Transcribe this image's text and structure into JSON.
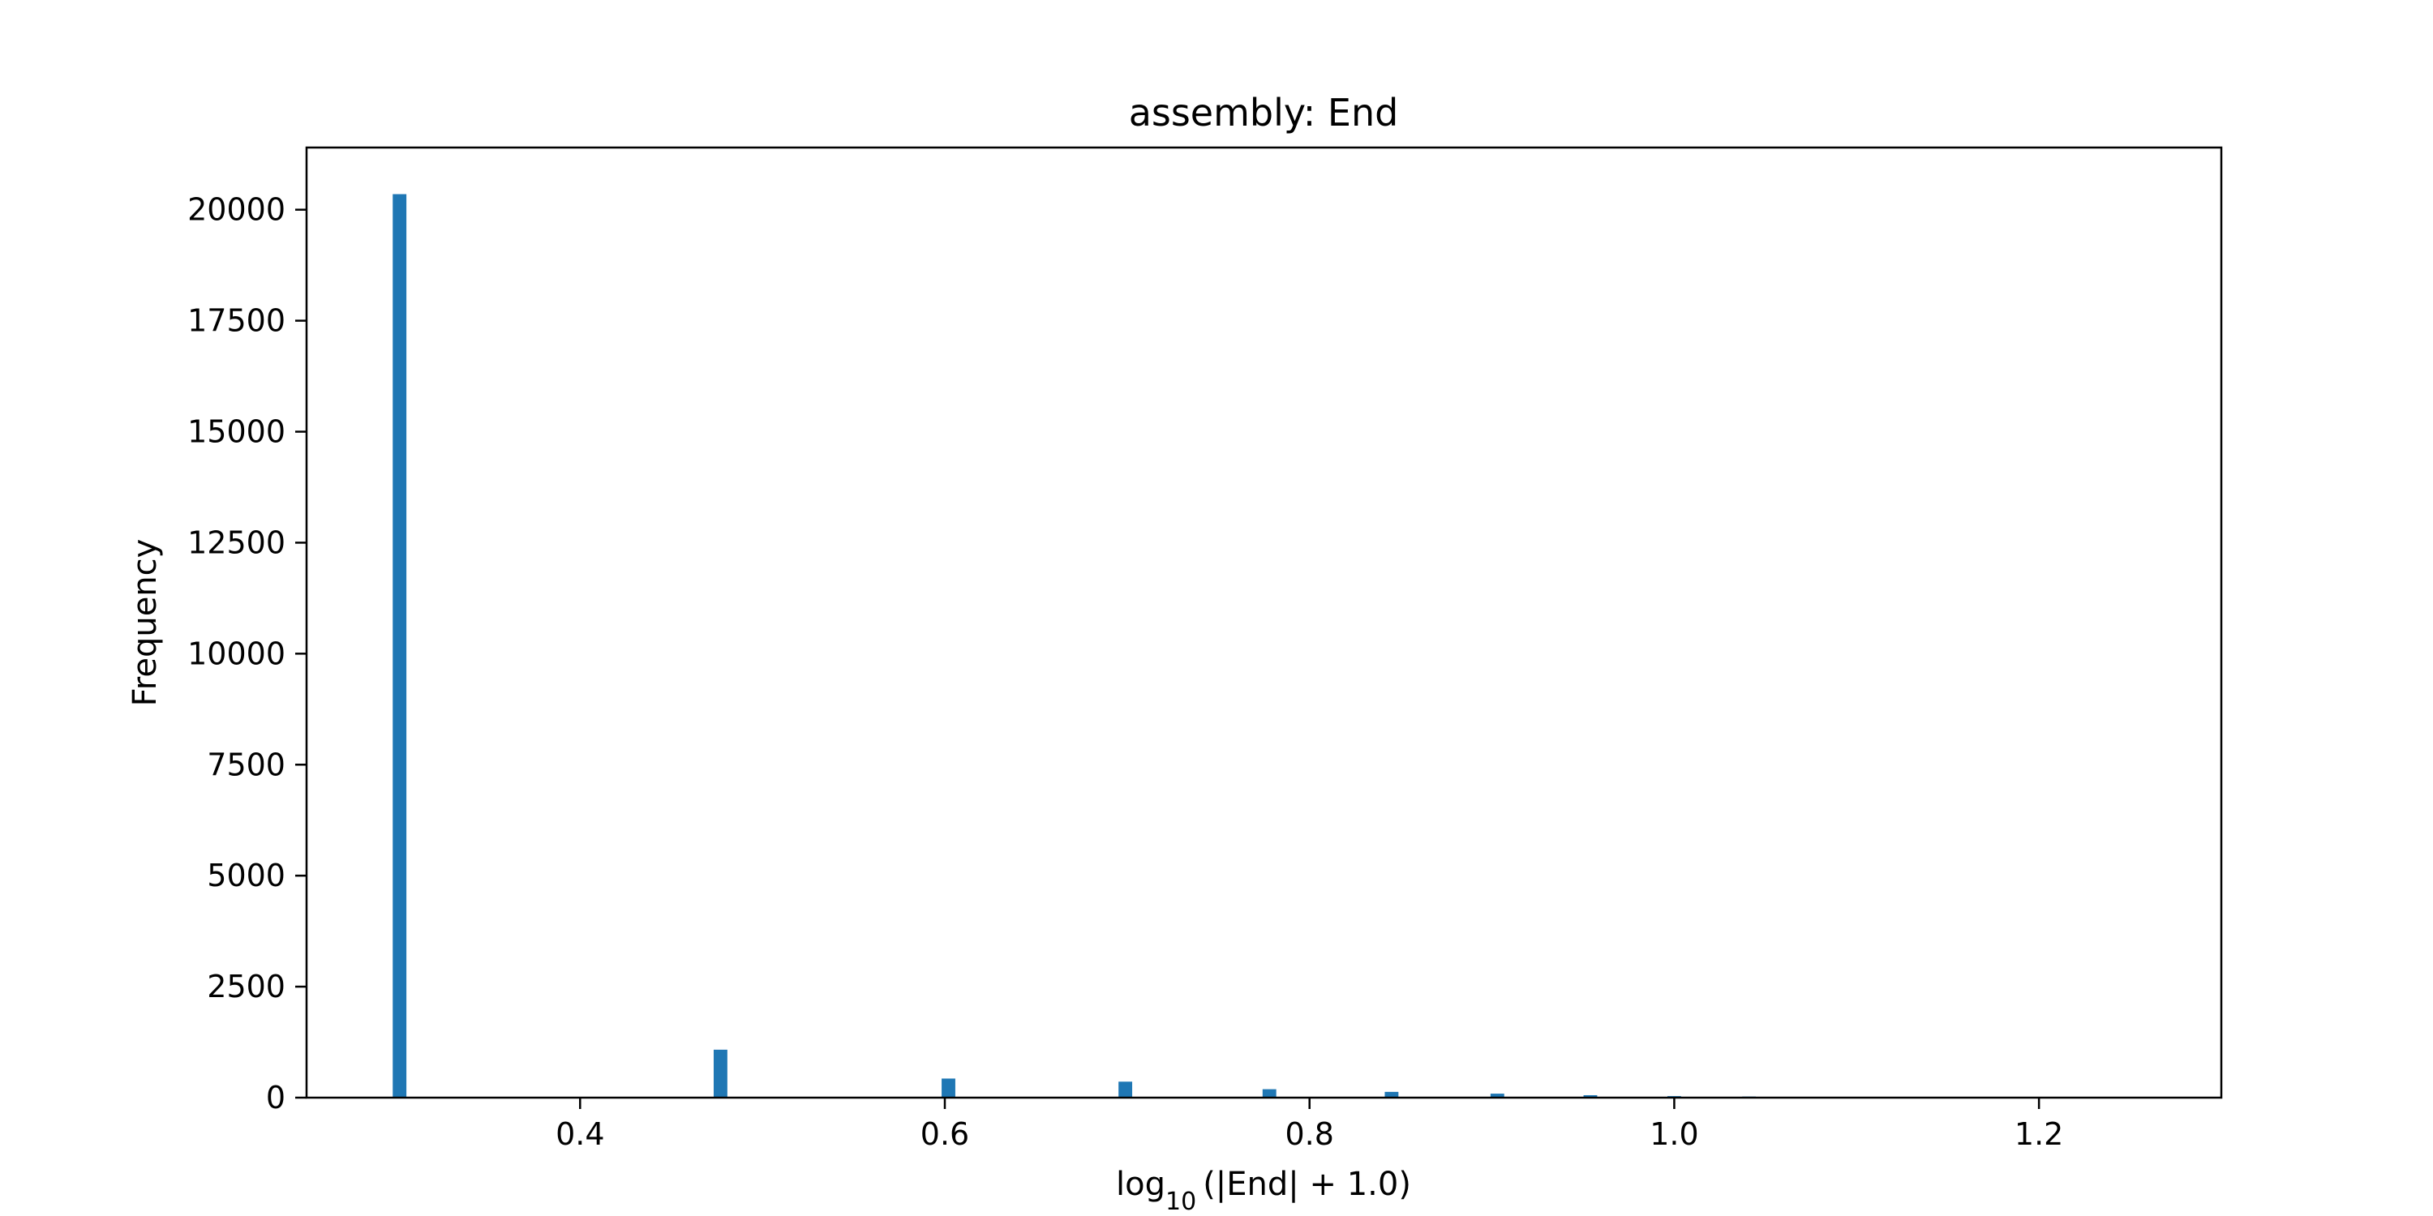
{
  "chart_data": {
    "type": "bar",
    "title": "assembly: End",
    "xlabel": {
      "prefix": "log",
      "subscript": "10",
      "suffix": "(|End| + 1.0)"
    },
    "ylabel": "Frequency",
    "xlim": [
      0.25,
      1.3
    ],
    "ylim": [
      0,
      21400
    ],
    "xticks": [
      "0.4",
      "0.6",
      "0.8",
      "1.0",
      "1.2"
    ],
    "yticks": [
      "0",
      "2500",
      "5000",
      "7500",
      "10000",
      "12500",
      "15000",
      "17500",
      "20000"
    ],
    "bar_color": "#1f77b4",
    "bin_width": 0.0075,
    "grid": false,
    "series": [
      {
        "x": [
          0.301,
          0.477,
          0.602,
          0.699,
          0.778,
          0.845,
          0.903,
          0.954,
          1.0,
          1.041
        ],
        "values": [
          20350,
          1080,
          430,
          360,
          190,
          130,
          90,
          55,
          35,
          25
        ]
      }
    ]
  }
}
